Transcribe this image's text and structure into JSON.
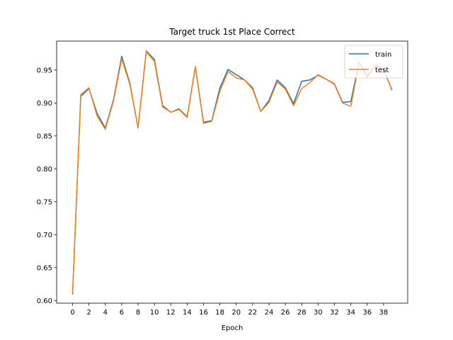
{
  "chart_data": {
    "type": "line",
    "title": "Target truck 1st Place Correct",
    "xlabel": "Epoch",
    "ylabel": "",
    "xlim": [
      -1.95,
      40.95
    ],
    "ylim": [
      0.596,
      0.994
    ],
    "x_ticks": [
      0,
      2,
      4,
      6,
      8,
      10,
      12,
      14,
      16,
      18,
      20,
      22,
      24,
      26,
      28,
      30,
      32,
      34,
      36,
      38
    ],
    "y_ticks": [
      0.6,
      0.65,
      0.7,
      0.75,
      0.8,
      0.85,
      0.9,
      0.95
    ],
    "x_tick_labels": [
      "0",
      "2",
      "4",
      "6",
      "8",
      "10",
      "12",
      "14",
      "16",
      "18",
      "20",
      "22",
      "24",
      "26",
      "28",
      "30",
      "32",
      "34",
      "36",
      "38"
    ],
    "y_tick_labels": [
      "0.60",
      "0.65",
      "0.70",
      "0.75",
      "0.80",
      "0.85",
      "0.90",
      "0.95"
    ],
    "legend_position": "top-right",
    "grid": false,
    "x": [
      0,
      1,
      2,
      3,
      4,
      5,
      6,
      7,
      8,
      9,
      10,
      11,
      12,
      13,
      14,
      15,
      16,
      17,
      18,
      19,
      20,
      21,
      22,
      23,
      24,
      25,
      26,
      27,
      28,
      29,
      30,
      31,
      32,
      33,
      34,
      35,
      36,
      37,
      38,
      39
    ],
    "series": [
      {
        "name": "train",
        "color": "#1f77b4",
        "values": [
          0.61,
          0.91,
          0.922,
          0.884,
          0.862,
          0.905,
          0.971,
          0.93,
          0.862,
          0.979,
          0.966,
          0.896,
          0.886,
          0.891,
          0.879,
          0.955,
          0.871,
          0.873,
          0.923,
          0.951,
          0.943,
          0.935,
          0.923,
          0.887,
          0.904,
          0.935,
          0.923,
          0.899,
          0.933,
          0.935,
          0.942,
          0.936,
          0.929,
          0.901,
          0.902,
          0.962,
          0.941,
          0.957,
          0.952,
          0.92
        ]
      },
      {
        "name": "test",
        "color": "#ff7f0e",
        "values": [
          0.612,
          0.913,
          0.923,
          0.88,
          0.86,
          0.903,
          0.967,
          0.928,
          0.862,
          0.978,
          0.963,
          0.894,
          0.886,
          0.89,
          0.878,
          0.955,
          0.869,
          0.872,
          0.918,
          0.948,
          0.938,
          0.935,
          0.921,
          0.887,
          0.901,
          0.932,
          0.921,
          0.896,
          0.922,
          0.931,
          0.943,
          0.936,
          0.928,
          0.9,
          0.895,
          0.961,
          0.939,
          0.956,
          0.95,
          0.921
        ]
      }
    ]
  }
}
